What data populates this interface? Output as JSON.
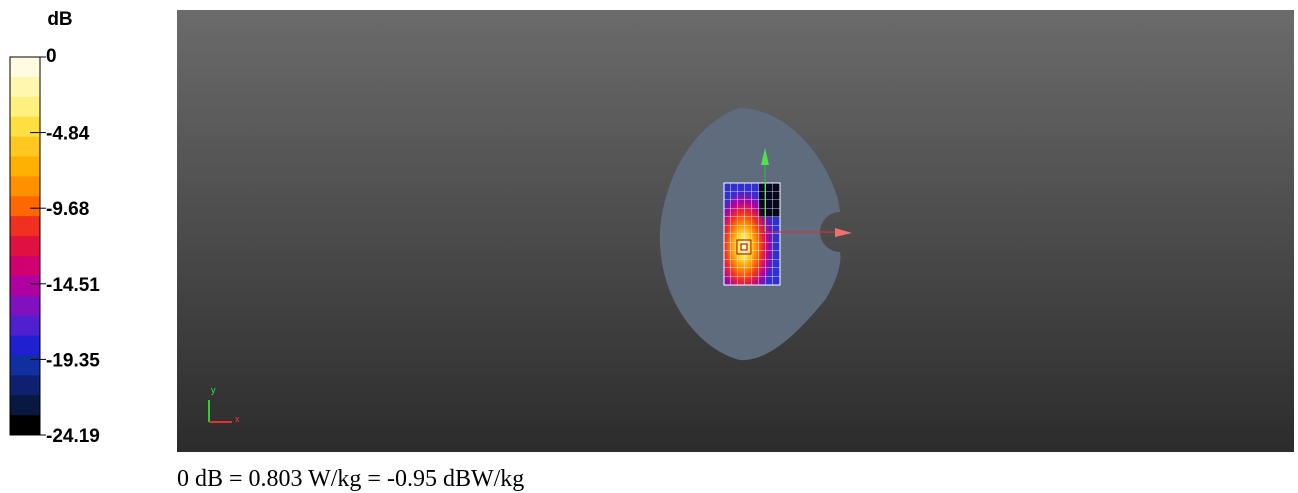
{
  "colorbar": {
    "unit": "dB",
    "ticks": [
      "0",
      "-4.84",
      "-9.68",
      "-14.51",
      "-19.35",
      "-24.19"
    ]
  },
  "axes": {
    "y": "y",
    "x": "x"
  },
  "caption": "0 dB = 0.803 W/kg = -0.95 dBW/kg"
}
